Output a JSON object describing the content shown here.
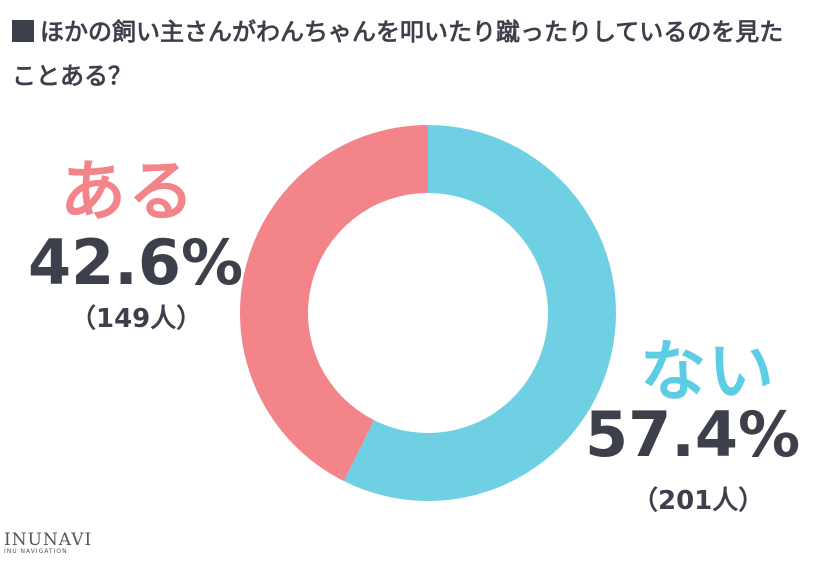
{
  "title": "ほかの飼い主さんがわんちゃんを叩いたり蹴ったりしているのを見たことある？",
  "brand": {
    "name": "INUNAVI",
    "tagline": "INU NAVIGATION"
  },
  "chart_data": {
    "type": "pie",
    "variant": "donut",
    "title": "ほかの飼い主さんがわんちゃんを叩いたり蹴ったりしているのを見たことある？",
    "slices": [
      {
        "label": "ない",
        "value": 57.4,
        "percent_label": "57.4%",
        "count_label": "（201人）",
        "color": "#6fd0e4"
      },
      {
        "label": "ある",
        "value": 42.6,
        "percent_label": "42.6%",
        "count_label": "（149人）",
        "color": "#f2848a"
      }
    ]
  }
}
